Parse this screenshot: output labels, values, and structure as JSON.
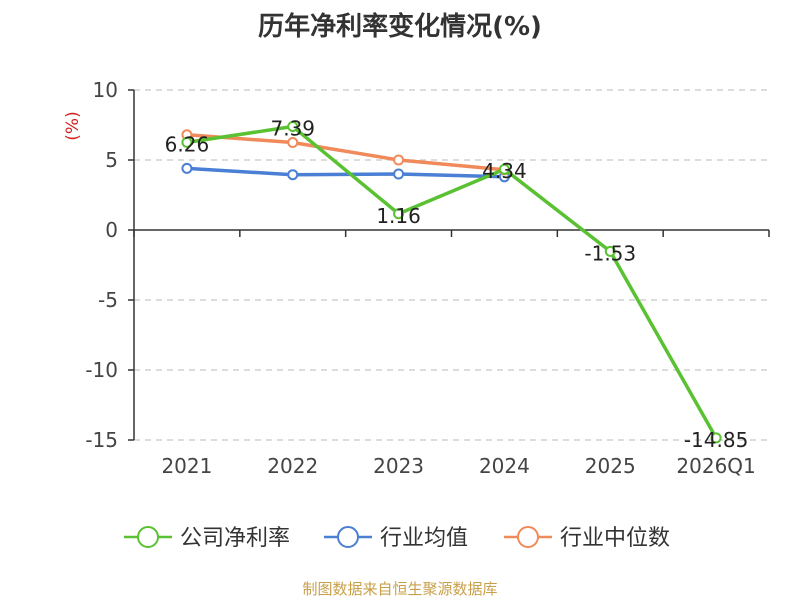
{
  "title": "历年净利率变化情况(%)",
  "source": "制图数据来自恒生聚源数据库",
  "colors": {
    "company": "#5ac232",
    "industry_avg": "#4a7fd4",
    "industry_median": "#f08a5a",
    "axis_label": "#d42020"
  },
  "chart_data": {
    "type": "line",
    "title": "历年净利率变化情况(%)",
    "ylabel": "(%)",
    "xlabel": "",
    "categories": [
      "2021",
      "2022",
      "2023",
      "2024",
      "2025",
      "2026Q1"
    ],
    "ylim": [
      -15,
      10
    ],
    "yticks": [
      10,
      5,
      0,
      -5,
      -10,
      -15
    ],
    "grid": true,
    "legend": "bottom-center",
    "series": [
      {
        "name": "公司净利率",
        "key": "company",
        "values": [
          6.26,
          7.39,
          1.16,
          4.34,
          -1.53,
          -14.85
        ],
        "labels": [
          "6.26",
          "7.39",
          "1.16",
          "4.34",
          "-1.53",
          "-14.85"
        ]
      },
      {
        "name": "行业均值",
        "key": "industry_avg",
        "values": [
          4.4,
          3.95,
          4.0,
          3.8,
          null,
          null
        ]
      },
      {
        "name": "行业中位数",
        "key": "industry_median",
        "values": [
          6.8,
          6.25,
          5.0,
          4.3,
          null,
          null
        ]
      }
    ]
  }
}
